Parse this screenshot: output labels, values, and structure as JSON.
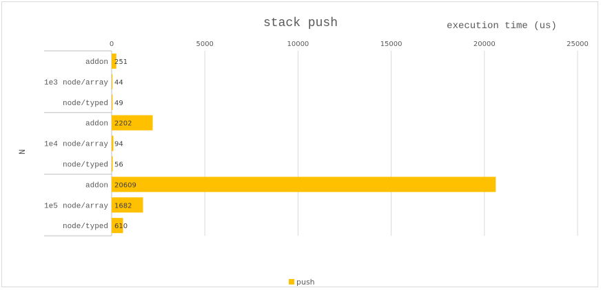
{
  "chart_data": {
    "type": "bar",
    "orientation": "horizontal",
    "title": "stack push",
    "xlabel": "execution time (us)",
    "ylabel": "N",
    "xlim": [
      0,
      25000
    ],
    "xticks": [
      0,
      5000,
      10000,
      15000,
      20000,
      25000
    ],
    "grid": true,
    "legend": "bottom",
    "groups": [
      {
        "label": "1e3",
        "categories": [
          "addon",
          "node/array",
          "node/typed"
        ]
      },
      {
        "label": "1e4",
        "categories": [
          "addon",
          "node/array",
          "node/typed"
        ]
      },
      {
        "label": "1e5",
        "categories": [
          "addon",
          "node/array",
          "node/typed"
        ]
      }
    ],
    "series": [
      {
        "name": "push",
        "color": "#FFC000",
        "values": [
          251,
          44,
          49,
          2202,
          94,
          56,
          20609,
          1682,
          610
        ]
      }
    ]
  }
}
